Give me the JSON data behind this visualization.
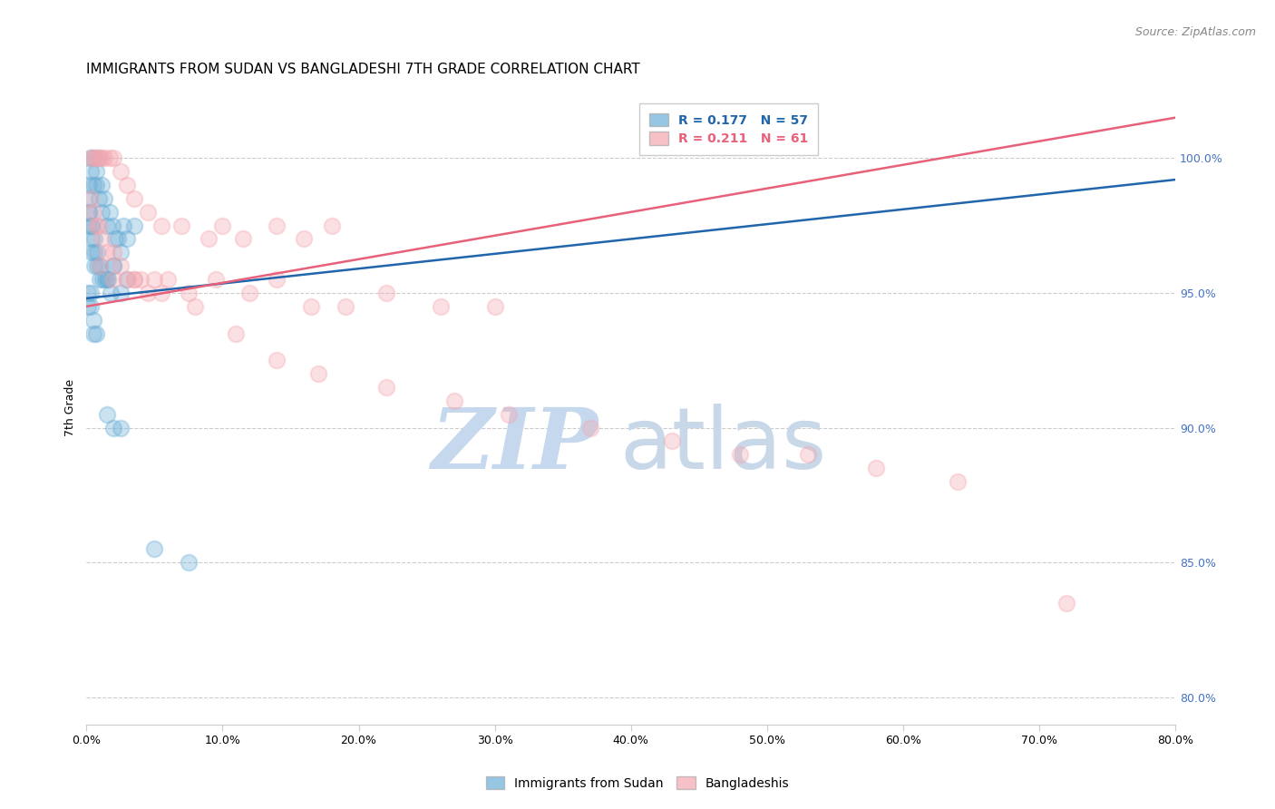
{
  "title": "IMMIGRANTS FROM SUDAN VS BANGLADESHI 7TH GRADE CORRELATION CHART",
  "source": "Source: ZipAtlas.com",
  "xlabel_vals": [
    0.0,
    10.0,
    20.0,
    30.0,
    40.0,
    50.0,
    60.0,
    70.0,
    80.0
  ],
  "ylabel_vals": [
    80.0,
    85.0,
    90.0,
    95.0,
    100.0
  ],
  "ylabel_label": "7th Grade",
  "xlim": [
    0.0,
    80.0
  ],
  "ylim": [
    79.0,
    102.5
  ],
  "blue_R": 0.177,
  "blue_N": 57,
  "pink_R": 0.211,
  "pink_N": 61,
  "blue_color": "#6baed6",
  "pink_color": "#f4a7b0",
  "blue_line_color": "#2166ac",
  "pink_line_color": "#e8617a",
  "blue_label": "Immigrants from Sudan",
  "pink_label": "Bangladeshis",
  "watermark_zip": "ZIP",
  "watermark_atlas": "atlas",
  "watermark_color": "#d0e4f5",
  "blue_x": [
    0.3,
    0.3,
    0.5,
    0.5,
    0.7,
    0.7,
    0.9,
    0.9,
    1.1,
    1.1,
    1.3,
    1.5,
    1.7,
    1.9,
    2.1,
    2.3,
    2.5,
    2.7,
    3.0,
    3.5,
    0.2,
    0.2,
    0.2,
    0.2,
    0.4,
    0.4,
    0.4,
    0.6,
    0.6,
    0.8,
    0.8,
    1.0,
    1.0,
    1.2,
    1.4,
    1.6,
    1.8,
    2.0,
    2.5,
    3.0,
    0.1,
    0.1,
    0.3,
    0.3,
    0.5,
    0.5,
    0.7,
    1.5,
    2.0,
    2.5,
    0.2,
    0.4,
    0.6,
    1.5,
    2.0,
    5.0,
    7.5
  ],
  "blue_y": [
    100.0,
    99.5,
    100.0,
    99.0,
    99.5,
    99.0,
    100.0,
    98.5,
    99.0,
    98.0,
    98.5,
    97.5,
    98.0,
    97.5,
    97.0,
    97.0,
    96.5,
    97.5,
    97.0,
    97.5,
    99.0,
    98.5,
    98.0,
    97.5,
    97.5,
    97.0,
    96.5,
    97.0,
    96.5,
    96.5,
    96.0,
    95.5,
    96.0,
    95.5,
    95.5,
    95.5,
    95.0,
    96.0,
    95.0,
    95.5,
    95.0,
    94.5,
    95.0,
    94.5,
    94.0,
    93.5,
    93.5,
    90.5,
    90.0,
    90.0,
    98.0,
    97.5,
    96.0,
    95.5,
    96.0,
    85.5,
    85.0
  ],
  "pink_x": [
    0.3,
    0.5,
    0.7,
    0.9,
    1.1,
    1.3,
    1.7,
    2.0,
    2.5,
    3.0,
    3.5,
    4.5,
    5.5,
    7.0,
    9.0,
    10.0,
    11.5,
    14.0,
    16.0,
    18.0,
    0.3,
    0.5,
    0.7,
    0.9,
    1.1,
    1.5,
    2.0,
    2.5,
    3.0,
    3.5,
    4.0,
    4.5,
    5.0,
    6.0,
    7.5,
    9.5,
    12.0,
    14.0,
    16.5,
    19.0,
    22.0,
    26.0,
    30.0,
    1.0,
    2.0,
    3.5,
    5.5,
    8.0,
    11.0,
    14.0,
    17.0,
    22.0,
    27.0,
    31.0,
    37.0,
    43.0,
    48.0,
    53.0,
    58.0,
    64.0,
    72.0
  ],
  "pink_y": [
    100.0,
    100.0,
    100.0,
    100.0,
    100.0,
    100.0,
    100.0,
    100.0,
    99.5,
    99.0,
    98.5,
    98.0,
    97.5,
    97.5,
    97.0,
    97.5,
    97.0,
    97.5,
    97.0,
    97.5,
    98.5,
    98.0,
    97.5,
    97.5,
    97.0,
    96.5,
    96.5,
    96.0,
    95.5,
    95.5,
    95.5,
    95.0,
    95.5,
    95.5,
    95.0,
    95.5,
    95.0,
    95.5,
    94.5,
    94.5,
    95.0,
    94.5,
    94.5,
    96.0,
    95.5,
    95.5,
    95.0,
    94.5,
    93.5,
    92.5,
    92.0,
    91.5,
    91.0,
    90.5,
    90.0,
    89.5,
    89.0,
    89.0,
    88.5,
    88.0,
    83.5
  ],
  "blue_trend_x": [
    0.0,
    80.0
  ],
  "blue_trend_y": [
    94.8,
    99.2
  ],
  "pink_trend_x": [
    0.0,
    80.0
  ],
  "pink_trend_y": [
    94.5,
    101.5
  ],
  "title_fontsize": 11,
  "source_fontsize": 9,
  "tick_fontsize": 9,
  "ylabel_fontsize": 9,
  "legend_fontsize": 10
}
